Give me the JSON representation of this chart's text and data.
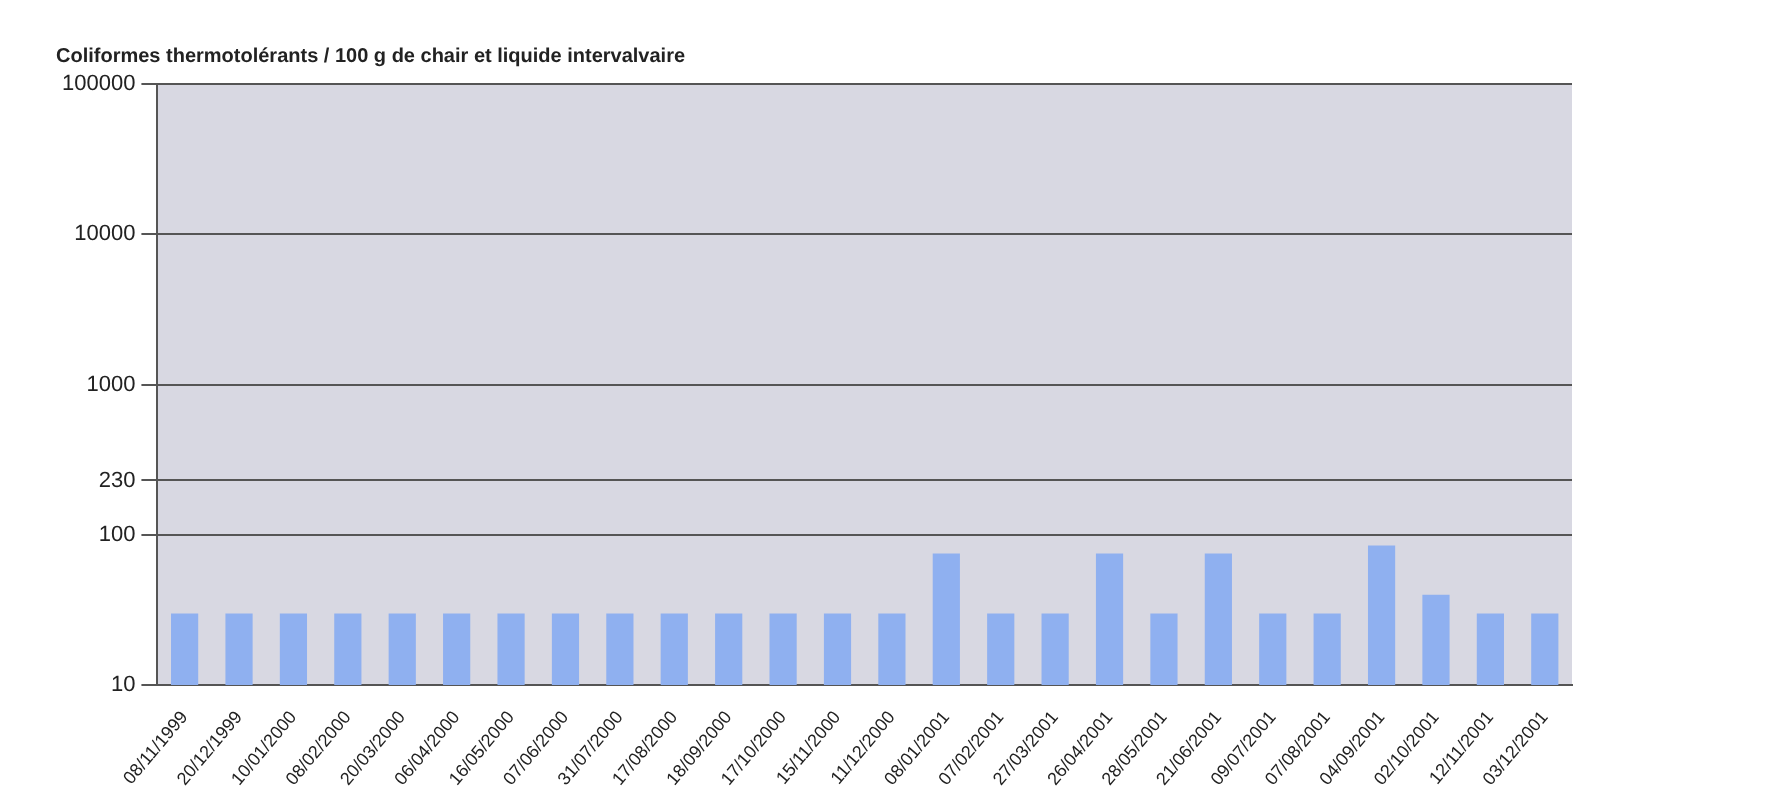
{
  "chart_data": {
    "type": "bar",
    "title": "Coliformes thermotolérants / 100 g de chair et liquide intervalvaire",
    "categories": [
      "08/11/1999",
      "20/12/1999",
      "10/01/2000",
      "08/02/2000",
      "20/03/2000",
      "06/04/2000",
      "16/05/2000",
      "07/06/2000",
      "31/07/2000",
      "17/08/2000",
      "18/09/2000",
      "17/10/2000",
      "15/11/2000",
      "11/12/2000",
      "08/01/2001",
      "07/02/2001",
      "27/03/2001",
      "26/04/2001",
      "28/05/2001",
      "21/06/2001",
      "09/07/2001",
      "07/08/2001",
      "04/09/2001",
      "02/10/2001",
      "12/11/2001",
      "03/12/2001"
    ],
    "values": [
      30,
      30,
      30,
      30,
      30,
      30,
      30,
      30,
      30,
      30,
      30,
      30,
      30,
      30,
      75,
      30,
      30,
      75,
      30,
      75,
      30,
      30,
      85,
      40,
      30,
      30
    ],
    "color": "#8fb0f0",
    "log": "y",
    "ylim": [
      10,
      100000
    ],
    "yticks": [
      10,
      100,
      230,
      1000,
      10000,
      100000
    ],
    "grid": "y",
    "legend": false
  }
}
